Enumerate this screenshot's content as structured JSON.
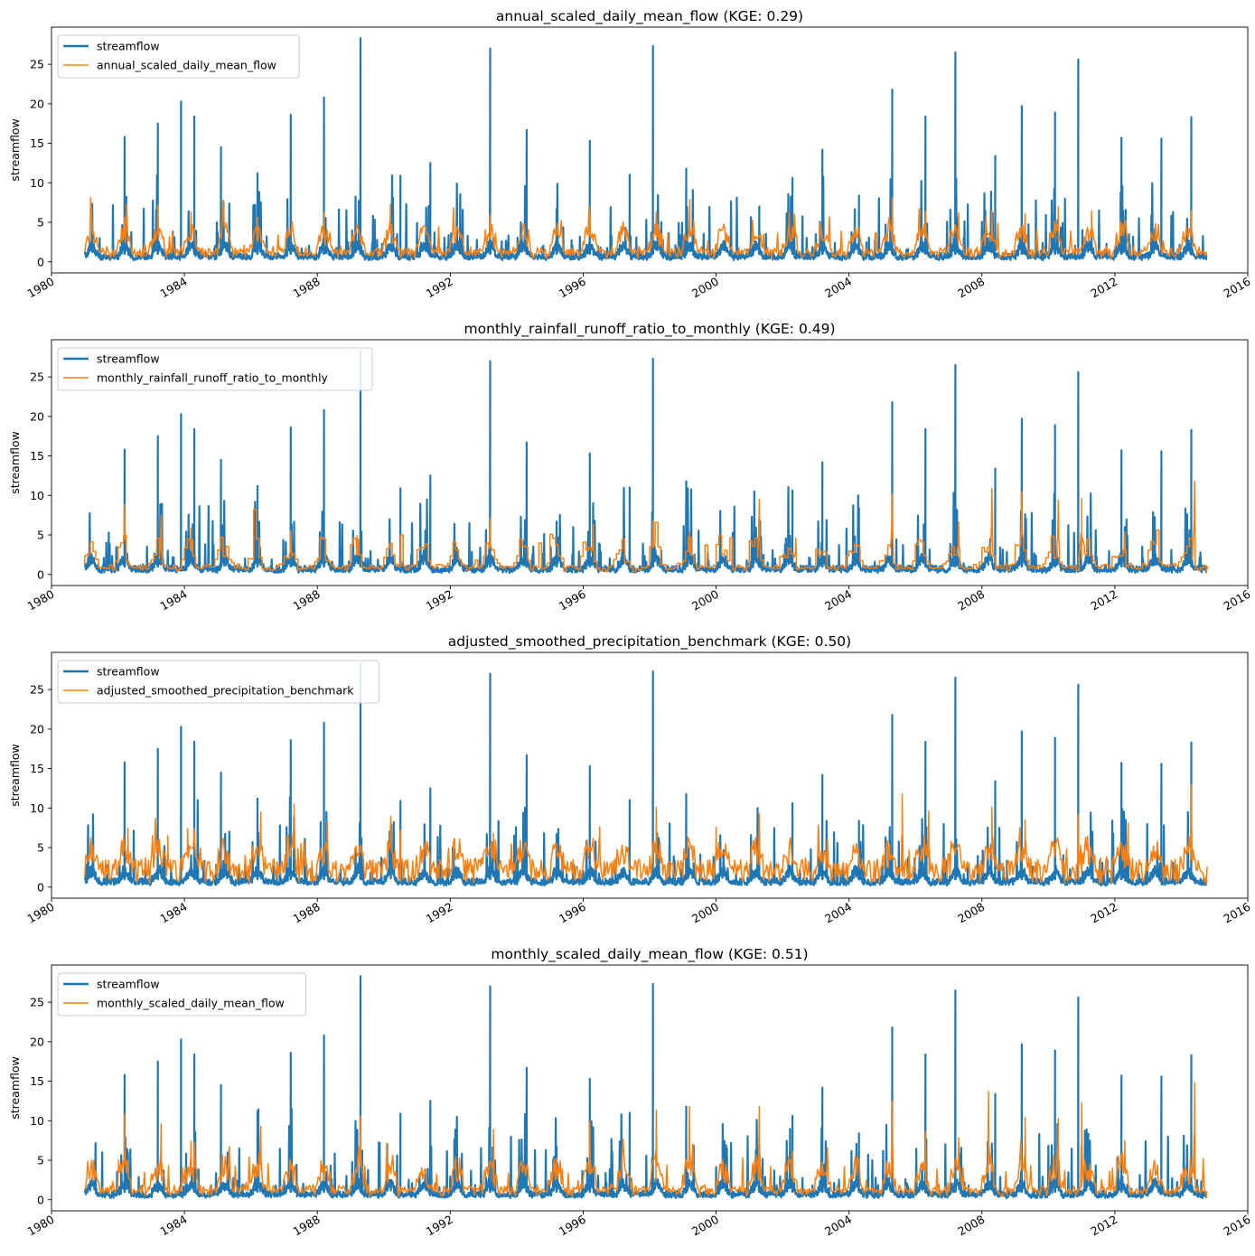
{
  "chart_data": [
    {
      "type": "line",
      "title": "annual_scaled_daily_mean_flow (KGE: 0.29)",
      "xlabel": "",
      "ylabel": "streamflow",
      "xlim": [
        "1980",
        "2016"
      ],
      "ylim": [
        -1.4,
        29.7
      ],
      "x_tick_labels": [
        "1980",
        "1984",
        "1988",
        "1992",
        "1996",
        "2000",
        "2004",
        "2008",
        "2012",
        "2016"
      ],
      "y_tick_labels": [
        "0",
        "5",
        "10",
        "15",
        "20",
        "25"
      ],
      "grid": false,
      "legend_position": "upper-left",
      "series": [
        {
          "name": "streamflow",
          "color": "#1f77b4",
          "x": [
            1981.0,
            1982.2,
            1983.2,
            1983.9,
            1984.3,
            1985.1,
            1986.2,
            1987.2,
            1988.2,
            1989.3,
            1990.5,
            1991.4,
            1993.2,
            1994.3,
            1995.2,
            1996.2,
            1997.4,
            1998.1,
            1999.1,
            2001.3,
            2002.3,
            2003.2,
            2004.3,
            2005.3,
            2006.3,
            2007.2,
            2008.4,
            2009.2,
            2010.2,
            2010.9,
            2012.2,
            2013.4,
            2014.3,
            2014.75
          ],
          "values": [
            1.2,
            15.8,
            17.5,
            20.3,
            18.4,
            14.5,
            11.2,
            18.6,
            20.8,
            28.3,
            10.9,
            12.5,
            27.0,
            16.7,
            6.7,
            15.3,
            11.0,
            27.3,
            11.8,
            7.0,
            10.6,
            14.2,
            8.4,
            21.8,
            18.4,
            26.5,
            13.4,
            19.7,
            18.9,
            25.6,
            15.7,
            15.6,
            18.3,
            0.3
          ]
        },
        {
          "name": "annual_scaled_daily_mean_flow",
          "color": "#ff7f0e",
          "x": [
            1981.0,
            1982.2,
            1983.2,
            1984.2,
            1986.2,
            1988.2,
            1990.2,
            1993.2,
            1996.2,
            1998.2,
            1999.2,
            2002.2,
            2005.3,
            2006.3,
            2007.3,
            2008.3,
            2009.3,
            2010.3,
            2011.3,
            2014.3,
            2014.75
          ],
          "values": [
            1.2,
            5.6,
            7.2,
            6.3,
            5.6,
            6.2,
            7.3,
            5.9,
            6.3,
            6.3,
            6.2,
            6.3,
            8.1,
            6.4,
            6.2,
            6.4,
            6.1,
            7.0,
            6.4,
            6.4,
            1.2
          ]
        }
      ]
    },
    {
      "type": "line",
      "title": "monthly_rainfall_runoff_ratio_to_monthly (KGE: 0.49)",
      "xlabel": "",
      "ylabel": "streamflow",
      "xlim": [
        "1980",
        "2016"
      ],
      "ylim": [
        -1.4,
        29.7
      ],
      "x_tick_labels": [
        "1980",
        "1984",
        "1988",
        "1992",
        "1996",
        "2000",
        "2004",
        "2008",
        "2012",
        "2016"
      ],
      "y_tick_labels": [
        "0",
        "5",
        "10",
        "15",
        "20",
        "25"
      ],
      "grid": false,
      "legend_position": "upper-left",
      "series": [
        {
          "name": "streamflow",
          "color": "#1f77b4",
          "x": [
            1981.0,
            1982.2,
            1983.2,
            1983.9,
            1984.3,
            1985.1,
            1986.2,
            1987.2,
            1988.2,
            1989.3,
            1990.5,
            1991.4,
            1993.2,
            1994.3,
            1995.2,
            1996.2,
            1997.4,
            1998.1,
            1999.1,
            2001.3,
            2002.3,
            2003.2,
            2004.3,
            2005.3,
            2006.3,
            2007.2,
            2008.4,
            2009.2,
            2010.2,
            2010.9,
            2012.2,
            2013.4,
            2014.3,
            2014.75
          ],
          "values": [
            1.2,
            15.8,
            17.5,
            20.3,
            18.4,
            14.5,
            11.2,
            18.6,
            20.8,
            28.3,
            10.9,
            12.5,
            27.0,
            16.7,
            6.7,
            15.3,
            11.0,
            27.3,
            11.8,
            7.0,
            10.6,
            14.2,
            8.4,
            21.8,
            18.4,
            26.5,
            13.4,
            19.7,
            18.9,
            25.6,
            15.7,
            15.6,
            18.3,
            0.3
          ]
        },
        {
          "name": "monthly_rainfall_runoff_ratio_to_monthly",
          "color": "#ff7f0e",
          "x": [
            1981.0,
            1982.2,
            1983.3,
            1984.2,
            1987.2,
            1989.2,
            1993.2,
            1996.3,
            1998.1,
            1999.2,
            2001.3,
            2002.4,
            2005.3,
            2007.3,
            2008.3,
            2009.2,
            2010.3,
            2011.0,
            2012.3,
            2014.4,
            2014.75
          ],
          "values": [
            1.2,
            8.8,
            7.5,
            5.9,
            5.5,
            4.9,
            7.1,
            6.3,
            6.8,
            5.4,
            9.5,
            4.6,
            10.2,
            6.6,
            10.9,
            10.4,
            9.4,
            9.6,
            5.4,
            11.8,
            0.2
          ]
        }
      ]
    },
    {
      "type": "line",
      "title": "adjusted_smoothed_precipitation_benchmark (KGE: 0.50)",
      "xlabel": "",
      "ylabel": "streamflow",
      "xlim": [
        "1980",
        "2016"
      ],
      "ylim": [
        -1.4,
        29.7
      ],
      "x_tick_labels": [
        "1980",
        "1984",
        "1988",
        "1992",
        "1996",
        "2000",
        "2004",
        "2008",
        "2012",
        "2016"
      ],
      "y_tick_labels": [
        "0",
        "5",
        "10",
        "15",
        "20",
        "25"
      ],
      "grid": false,
      "legend_position": "upper-left",
      "series": [
        {
          "name": "streamflow",
          "color": "#1f77b4",
          "x": [
            1981.0,
            1982.2,
            1983.2,
            1983.9,
            1984.3,
            1985.1,
            1986.2,
            1987.2,
            1988.2,
            1989.3,
            1990.5,
            1991.4,
            1993.2,
            1994.3,
            1995.2,
            1996.2,
            1997.4,
            1998.1,
            1999.1,
            2001.3,
            2002.3,
            2003.2,
            2004.3,
            2005.3,
            2006.3,
            2007.2,
            2008.4,
            2009.2,
            2010.2,
            2010.9,
            2012.2,
            2013.4,
            2014.3,
            2014.75
          ],
          "values": [
            1.2,
            15.8,
            17.5,
            20.3,
            18.4,
            14.5,
            11.2,
            18.6,
            20.8,
            28.3,
            10.9,
            12.5,
            27.0,
            16.7,
            6.7,
            15.3,
            11.0,
            27.3,
            11.8,
            7.0,
            10.6,
            14.2,
            8.4,
            21.8,
            18.4,
            26.5,
            13.4,
            19.7,
            18.9,
            25.6,
            15.7,
            15.6,
            18.3,
            0.3
          ]
        },
        {
          "name": "adjusted_smoothed_precipitation_benchmark",
          "color": "#ff7f0e",
          "x": [
            1981.0,
            1982.3,
            1983.5,
            1984.1,
            1986.3,
            1987.3,
            1988.3,
            1990.5,
            1993.3,
            1996.5,
            1998.2,
            2000.0,
            2001.3,
            2005.6,
            2006.4,
            2008.3,
            2009.3,
            2010.9,
            2012.4,
            2014.3,
            2014.75
          ],
          "values": [
            1.2,
            7.5,
            6.5,
            7.4,
            9.5,
            10.5,
            8.3,
            7.2,
            6.8,
            7.6,
            10.1,
            7.6,
            9.3,
            11.8,
            9.6,
            10.1,
            8.5,
            9.2,
            8.1,
            13.0,
            0.3
          ]
        }
      ]
    },
    {
      "type": "line",
      "title": "monthly_scaled_daily_mean_flow (KGE: 0.51)",
      "xlabel": "",
      "ylabel": "streamflow",
      "xlim": [
        "1980",
        "2016"
      ],
      "ylim": [
        -1.4,
        29.7
      ],
      "x_tick_labels": [
        "1980",
        "1984",
        "1988",
        "1992",
        "1996",
        "2000",
        "2004",
        "2008",
        "2012",
        "2016"
      ],
      "y_tick_labels": [
        "0",
        "5",
        "10",
        "15",
        "20",
        "25"
      ],
      "grid": false,
      "legend_position": "upper-left",
      "series": [
        {
          "name": "streamflow",
          "color": "#1f77b4",
          "x": [
            1981.0,
            1982.2,
            1983.2,
            1983.9,
            1984.3,
            1985.1,
            1986.2,
            1987.2,
            1988.2,
            1989.3,
            1990.5,
            1991.4,
            1993.2,
            1994.3,
            1995.2,
            1996.2,
            1997.4,
            1998.1,
            1999.1,
            2001.3,
            2002.3,
            2003.2,
            2004.3,
            2005.3,
            2006.3,
            2007.2,
            2008.4,
            2009.2,
            2010.2,
            2010.9,
            2012.2,
            2013.4,
            2014.3,
            2014.75
          ],
          "values": [
            1.2,
            15.8,
            17.5,
            20.3,
            18.4,
            14.5,
            11.2,
            18.6,
            20.8,
            28.3,
            10.9,
            12.5,
            27.0,
            16.7,
            6.7,
            15.3,
            11.0,
            27.3,
            11.8,
            7.0,
            10.6,
            14.2,
            8.4,
            21.8,
            18.4,
            26.5,
            13.4,
            19.7,
            18.9,
            25.6,
            15.7,
            15.6,
            18.3,
            0.3
          ]
        },
        {
          "name": "monthly_scaled_daily_mean_flow",
          "color": "#ff7f0e",
          "x": [
            1981.0,
            1982.2,
            1983.3,
            1984.2,
            1986.3,
            1989.3,
            1993.3,
            1996.2,
            1998.2,
            1999.2,
            2001.3,
            2002.3,
            2005.3,
            2006.3,
            2007.3,
            2008.2,
            2009.3,
            2010.3,
            2011.0,
            2012.3,
            2014.4,
            2014.75
          ],
          "values": [
            1.2,
            10.8,
            9.6,
            7.4,
            9.3,
            10.6,
            8.9,
            9.9,
            11.3,
            11.8,
            11.8,
            6.1,
            12.5,
            8.6,
            7.9,
            13.7,
            10.4,
            10.3,
            12.3,
            7.5,
            14.8,
            0.3
          ]
        }
      ]
    }
  ]
}
